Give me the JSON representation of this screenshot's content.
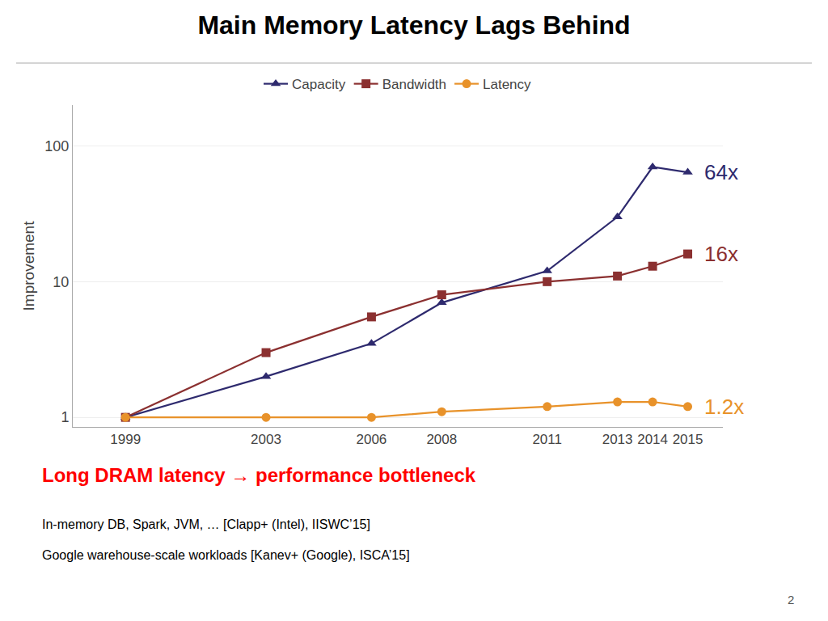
{
  "chart_data": {
    "type": "line",
    "title": "Main Memory Latency Lags Behind",
    "subtitle": {
      "text": "Long DRAM latency → performance bottleneck",
      "color": "#ff0000"
    },
    "y_label": "Improvement",
    "x": [
      1999,
      2003,
      2006,
      2008,
      2011,
      2013,
      2014,
      2015
    ],
    "series": [
      {
        "name": "Capacity",
        "color": "#2e2a6e",
        "marker": "triangle-up",
        "values": [
          1,
          2.0,
          3.5,
          7.0,
          12.0,
          30.0,
          70.0,
          64.0
        ],
        "annotation": {
          "text": "64x",
          "color": "#2e2a6e"
        }
      },
      {
        "name": "Bandwidth",
        "color": "#8b3030",
        "marker": "square",
        "values": [
          1,
          3.0,
          5.5,
          8.0,
          10.0,
          11.0,
          13.0,
          16.0
        ],
        "annotation": {
          "text": "16x",
          "color": "#8b3030"
        }
      },
      {
        "name": "Latency",
        "color": "#e8922a",
        "marker": "circle",
        "values": [
          1,
          1.0,
          1.0,
          1.1,
          1.2,
          1.3,
          1.3,
          1.2
        ],
        "annotation": {
          "text": "1.2x",
          "color": "#e8922a"
        }
      }
    ],
    "xlim": [
      1997.5,
      2016.0
    ],
    "xticks": [
      1999,
      2003,
      2006,
      2008,
      2011,
      2013,
      2014,
      2015
    ],
    "ylim": [
      0.85,
      200
    ],
    "yticks": [
      1,
      10,
      100
    ],
    "log": "y",
    "grid": "y",
    "legend": "top",
    "annotations": [
      {
        "text": "In-memory DB, Spark, JVM, … [Clapp+ (Intel), IISWC’15]"
      },
      {
        "text": "Google warehouse-scale workloads [Kanev+ (Google), ISCA’15]"
      },
      {
        "text": "2"
      }
    ]
  }
}
